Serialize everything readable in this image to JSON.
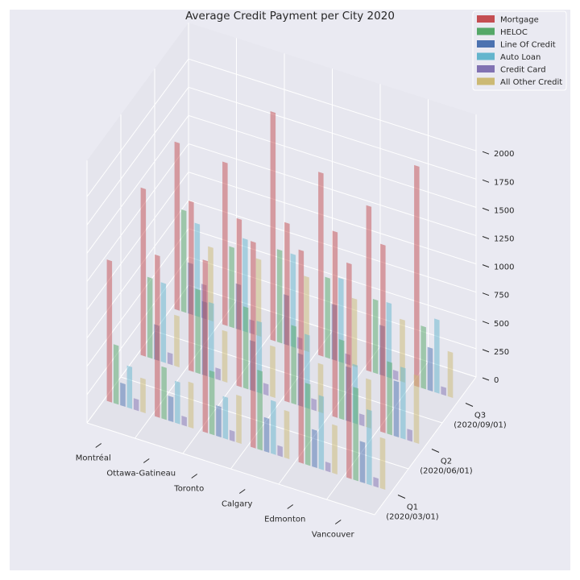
{
  "chart_data": {
    "type": "bar",
    "projection": "3d",
    "title": "Average Credit Payment per City 2020",
    "cities": [
      "Montréal",
      "Ottawa-Gatineau",
      "Toronto",
      "Calgary",
      "Edmonton",
      "Vancouver"
    ],
    "quarters": [
      "Q1\n(2020/03/01)",
      "Q2\n(2020/06/01)",
      "Q3\n(2020/09/01)"
    ],
    "z_ticks": [
      0,
      250,
      500,
      750,
      1000,
      1250,
      1500,
      1750,
      2000
    ],
    "zlim": [
      0,
      2000
    ],
    "legend_position": "top-right",
    "grid": true,
    "series": [
      {
        "name": "Mortgage",
        "color": "#c44e52",
        "values": [
          [
            1250,
            1430,
            1520,
            1820,
            1880,
            1900
          ],
          [
            1480,
            1500,
            1480,
            1580,
            1640,
            1660
          ],
          [
            1480,
            1440,
            2020,
            1620,
            1460,
            1950
          ]
        ]
      },
      {
        "name": "HELOC",
        "color": "#55a868",
        "values": [
          [
            520,
            460,
            560,
            700,
            720,
            820
          ],
          [
            710,
            740,
            720,
            690,
            700,
            640
          ],
          [
            900,
            710,
            820,
            710,
            650,
            550
          ]
        ]
      },
      {
        "name": "Line Of Credit",
        "color": "#4c72b0",
        "values": [
          [
            200,
            220,
            270,
            300,
            330,
            360
          ],
          [
            310,
            650,
            440,
            460,
            480,
            490
          ],
          [
            450,
            400,
            440,
            490,
            440,
            380
          ]
        ]
      },
      {
        "name": "Auto Loan",
        "color": "#64b5cd",
        "values": [
          [
            370,
            370,
            370,
            470,
            650,
            660
          ],
          [
            700,
            660,
            630,
            650,
            520,
            630
          ],
          [
            820,
            820,
            820,
            740,
            660,
            650
          ]
        ]
      },
      {
        "name": "Credit Card",
        "color": "#8172b2",
        "values": [
          [
            100,
            80,
            90,
            90,
            80,
            80
          ],
          [
            100,
            100,
            100,
            100,
            100,
            100
          ],
          [
            300,
            120,
            100,
            90,
            80,
            70
          ]
        ]
      },
      {
        "name": "All Other Credit",
        "color": "#ccb974",
        "values": [
          [
            300,
            400,
            420,
            420,
            430,
            450
          ],
          [
            450,
            450,
            450,
            430,
            430,
            600
          ],
          [
            650,
            680,
            660,
            600,
            550,
            400
          ]
        ]
      }
    ]
  }
}
